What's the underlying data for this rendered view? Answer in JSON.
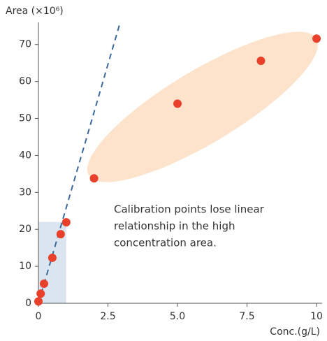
{
  "chart_data": {
    "type": "scatter",
    "y_label": "Area (×10⁶)",
    "x_label": "Conc.(g/L)",
    "annotation": [
      "Calibration points lose linear",
      "relationship in the high",
      "concentration area."
    ],
    "series": [
      {
        "color": "#e8402a",
        "x": [
          0,
          0.08,
          0.2,
          0.5,
          0.8,
          1.0,
          2,
          5,
          8,
          10
        ],
        "values": [
          0.5,
          2.6,
          5.3,
          12.3,
          18.7,
          21.9,
          33.8,
          54,
          65.6,
          71.6
        ]
      }
    ],
    "trend_line": {
      "color": "#3d6a9a",
      "x": [
        0,
        2.94
      ],
      "y": [
        0,
        76
      ]
    },
    "highlight_region": {
      "color": "#dbe5f0",
      "x": [
        0,
        1
      ],
      "y": [
        0,
        22
      ]
    },
    "xlim": [
      0,
      10.2
    ],
    "ylim": [
      0,
      76
    ],
    "xticks": [
      0,
      2.5,
      {
        "value": 5,
        "label": "5.0"
      },
      7.5,
      10
    ],
    "yticks": [
      0,
      10,
      20,
      30,
      40,
      50,
      60,
      70
    ]
  }
}
